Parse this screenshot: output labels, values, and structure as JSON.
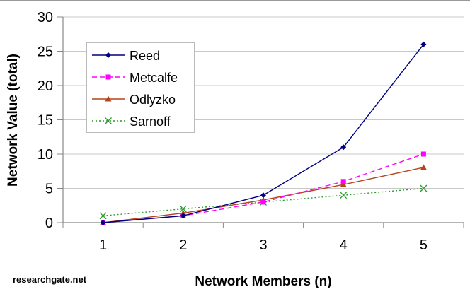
{
  "chart_data": {
    "type": "line",
    "xlabel": "Network Members (n)",
    "ylabel": "Network Value (total)",
    "categories": [
      1,
      2,
      3,
      4,
      5
    ],
    "ylim": [
      0,
      30
    ],
    "yticks": [
      0,
      5,
      10,
      15,
      20,
      25,
      30
    ],
    "grid": true,
    "legend_position": "top-left",
    "series": [
      {
        "name": "Reed",
        "values": [
          0,
          1,
          4,
          11,
          26
        ],
        "color": "#000080",
        "dash": "solid",
        "marker": "diamond"
      },
      {
        "name": "Metcalfe",
        "values": [
          0,
          1,
          3,
          6,
          10
        ],
        "color": "#ff00ff",
        "dash": "dashed",
        "marker": "square"
      },
      {
        "name": "Odlyzko",
        "values": [
          0,
          1.39,
          3.3,
          5.55,
          8.05
        ],
        "color": "#b5441c",
        "dash": "solid",
        "marker": "triangle"
      },
      {
        "name": "Sarnoff",
        "values": [
          1,
          2,
          3,
          4,
          5
        ],
        "color": "#2a9a2a",
        "dash": "dotted",
        "marker": "x"
      }
    ]
  },
  "watermark": "researchgate.net"
}
